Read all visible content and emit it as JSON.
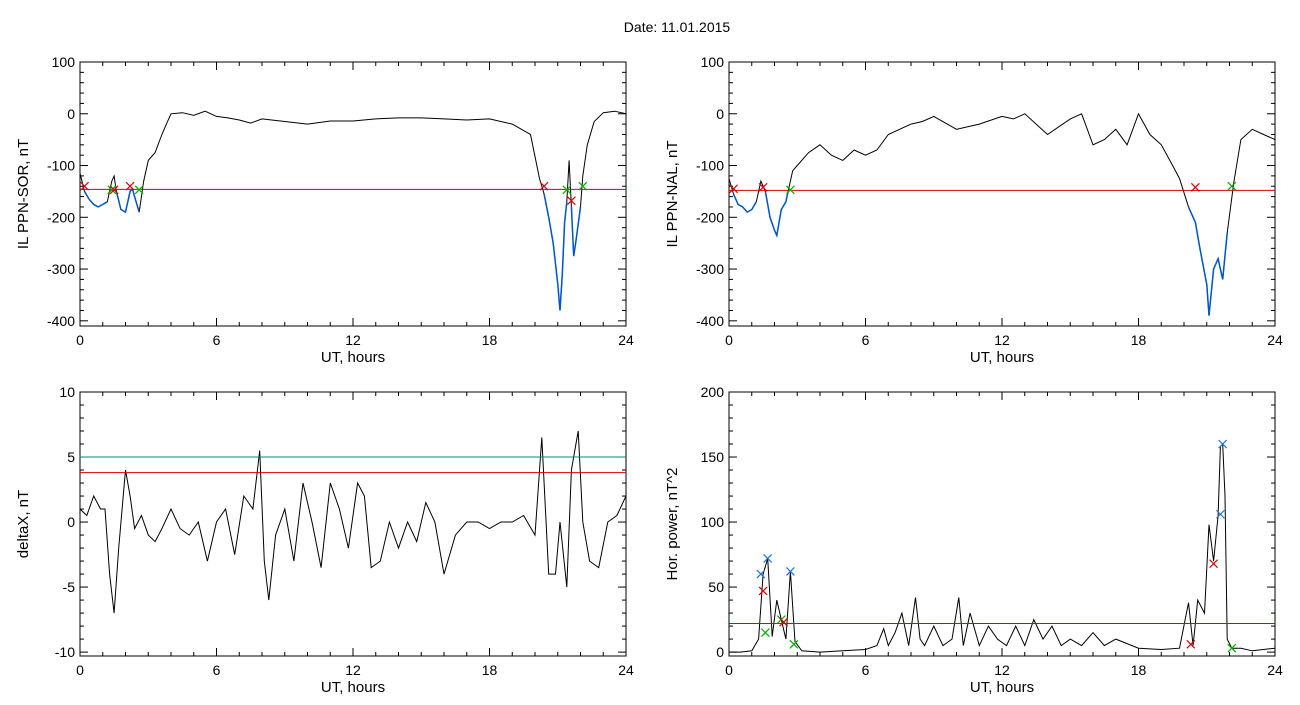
{
  "page": {
    "date_label": "Date:  11.01.2015"
  },
  "colors": {
    "trace": "#000000",
    "highlight": "#0055cc",
    "threshold": "#dd0000",
    "threshold2": "#008b8b",
    "marker_red": "#dd0000",
    "marker_green": "#00aa00",
    "marker_blue": "#1e73d6"
  },
  "chart_data": [
    {
      "id": "sor",
      "type": "line",
      "xlabel": "UT, hours",
      "ylabel": "IL PPN-SOR, nT",
      "xlim": [
        0,
        24
      ],
      "ylim": [
        -410,
        100
      ],
      "xticks": [
        0,
        6,
        12,
        18,
        24
      ],
      "yticks": [
        100,
        0,
        -100,
        -200,
        -300,
        -400
      ],
      "grid": false,
      "x": [
        0,
        0.2,
        0.4,
        0.6,
        0.8,
        1.0,
        1.2,
        1.4,
        1.5,
        1.6,
        1.8,
        2.0,
        2.2,
        2.3,
        2.5,
        2.6,
        2.8,
        3.0,
        3.3,
        3.6,
        3.8,
        4.0,
        4.5,
        5.0,
        5.5,
        6.0,
        6.5,
        7.0,
        7.5,
        8.0,
        9,
        10,
        11,
        12,
        13,
        14,
        15,
        16,
        17,
        18,
        19,
        19.8,
        20.2,
        20.4,
        20.6,
        20.8,
        21.0,
        21.1,
        21.2,
        21.3,
        21.4,
        21.5,
        21.6,
        21.7,
        21.8,
        22.0,
        22.1,
        22.3,
        22.6,
        23.0,
        23.5,
        24
      ],
      "y": [
        -115,
        -150,
        -165,
        -175,
        -180,
        -175,
        -170,
        -130,
        -120,
        -150,
        -185,
        -190,
        -150,
        -145,
        -175,
        -190,
        -130,
        -90,
        -75,
        -40,
        -20,
        0,
        2,
        -3,
        5,
        -5,
        -8,
        -12,
        -18,
        -10,
        -15,
        -20,
        -14,
        -14,
        -10,
        -8,
        -8,
        -10,
        -12,
        -10,
        -20,
        -40,
        -125,
        -155,
        -200,
        -250,
        -330,
        -380,
        -310,
        -210,
        -170,
        -90,
        -180,
        -275,
        -245,
        -180,
        -120,
        -60,
        -15,
        2,
        5,
        0
      ],
      "threshold": -146,
      "markers": [
        {
          "x": 0.2,
          "y": -140,
          "color": "red"
        },
        {
          "x": 1.4,
          "y": -147,
          "color": "green"
        },
        {
          "x": 1.5,
          "y": -147,
          "color": "red"
        },
        {
          "x": 2.2,
          "y": -140,
          "color": "red"
        },
        {
          "x": 2.6,
          "y": -147,
          "color": "green"
        },
        {
          "x": 20.4,
          "y": -140,
          "color": "red"
        },
        {
          "x": 21.4,
          "y": -147,
          "color": "green"
        },
        {
          "x": 21.6,
          "y": -168,
          "color": "red"
        },
        {
          "x": 22.1,
          "y": -140,
          "color": "green"
        }
      ]
    },
    {
      "id": "nal",
      "type": "line",
      "xlabel": "UT, hours",
      "ylabel": "IL PPN-NAL, nT",
      "xlim": [
        0,
        24
      ],
      "ylim": [
        -410,
        100
      ],
      "xticks": [
        0,
        6,
        12,
        18,
        24
      ],
      "yticks": [
        100,
        0,
        -100,
        -200,
        -300,
        -400
      ],
      "grid": false,
      "x": [
        0,
        0.2,
        0.4,
        0.6,
        0.8,
        1.0,
        1.2,
        1.4,
        1.6,
        1.8,
        2.0,
        2.1,
        2.3,
        2.5,
        2.6,
        2.8,
        3.0,
        3.5,
        4.0,
        4.5,
        5.0,
        5.5,
        6.0,
        6.5,
        7.0,
        7.5,
        8.0,
        8.5,
        9,
        10,
        11,
        12,
        12.5,
        13,
        14,
        15,
        15.5,
        16,
        16.5,
        17,
        17.5,
        18,
        18.5,
        19,
        19.5,
        19.8,
        20.2,
        20.5,
        20.7,
        21.0,
        21.1,
        21.3,
        21.5,
        21.7,
        21.9,
        22.2,
        22.5,
        23.0,
        23.5,
        24
      ],
      "y": [
        -125,
        -155,
        -175,
        -180,
        -190,
        -185,
        -170,
        -130,
        -150,
        -200,
        -225,
        -235,
        -185,
        -170,
        -150,
        -110,
        -100,
        -75,
        -60,
        -80,
        -90,
        -70,
        -80,
        -70,
        -40,
        -30,
        -20,
        -15,
        -5,
        -30,
        -20,
        -5,
        -10,
        0,
        -40,
        -10,
        0,
        -60,
        -50,
        -30,
        -60,
        0,
        -40,
        -60,
        -100,
        -125,
        -180,
        -210,
        -260,
        -330,
        -390,
        -300,
        -280,
        -320,
        -230,
        -130,
        -50,
        -30,
        -40,
        -50
      ],
      "threshold": -148,
      "markers": [
        {
          "x": 0.2,
          "y": -145,
          "color": "red"
        },
        {
          "x": 1.5,
          "y": -142,
          "color": "red"
        },
        {
          "x": 2.7,
          "y": -147,
          "color": "green"
        },
        {
          "x": 20.5,
          "y": -142,
          "color": "red"
        },
        {
          "x": 22.1,
          "y": -140,
          "color": "green"
        }
      ]
    },
    {
      "id": "deltax",
      "type": "line",
      "xlabel": "UT, hours",
      "ylabel": "deltaX, nT",
      "xlim": [
        0,
        24
      ],
      "ylim": [
        -10.3,
        10
      ],
      "xticks": [
        0,
        6,
        12,
        18,
        24
      ],
      "yticks": [
        10,
        5,
        0,
        -5,
        -10
      ],
      "grid": false,
      "x": [
        0,
        0.3,
        0.6,
        0.9,
        1.1,
        1.3,
        1.5,
        1.7,
        2.0,
        2.2,
        2.4,
        2.7,
        3.0,
        3.3,
        3.6,
        4.0,
        4.4,
        4.8,
        5.2,
        5.6,
        6.0,
        6.4,
        6.8,
        7.2,
        7.6,
        7.9,
        8.1,
        8.3,
        8.6,
        9.0,
        9.4,
        9.8,
        10.2,
        10.6,
        11.0,
        11.4,
        11.8,
        12.2,
        12.5,
        12.8,
        13.2,
        13.6,
        14.0,
        14.4,
        14.8,
        15.2,
        15.6,
        16.0,
        16.5,
        17.0,
        17.5,
        18.0,
        18.5,
        19.0,
        19.5,
        20.0,
        20.3,
        20.6,
        20.9,
        21.1,
        21.4,
        21.6,
        21.9,
        22.1,
        22.4,
        22.8,
        23.2,
        23.6,
        24
      ],
      "y": [
        1,
        0.5,
        2,
        1,
        1,
        -4,
        -7,
        -2,
        4,
        2,
        -0.5,
        0.5,
        -1,
        -1.5,
        -0.5,
        1,
        -0.5,
        -1,
        0,
        -3,
        0,
        1,
        -2.5,
        2,
        1,
        5.5,
        -3,
        -6,
        -1,
        1,
        -3,
        3,
        0,
        -3.5,
        3,
        1,
        -2,
        3,
        2,
        -3.5,
        -3,
        0,
        -2,
        0,
        -1.5,
        1.5,
        0,
        -4,
        -1,
        0,
        0,
        -0.5,
        0,
        0,
        0.5,
        -1,
        6.5,
        -4,
        -4,
        0,
        -5,
        4,
        7,
        0,
        -3,
        -3.5,
        0,
        0.5,
        2
      ],
      "thresholds": [
        5,
        3.8
      ]
    },
    {
      "id": "power",
      "type": "line",
      "xlabel": "UT, hours",
      "ylabel": "Hor. power, nT^2",
      "xlim": [
        0,
        24
      ],
      "ylim": [
        -3,
        200
      ],
      "xticks": [
        0,
        6,
        12,
        18,
        24
      ],
      "yticks": [
        200,
        150,
        100,
        50,
        0
      ],
      "grid": false,
      "x": [
        0,
        0.5,
        1.0,
        1.3,
        1.5,
        1.7,
        1.9,
        2.1,
        2.3,
        2.5,
        2.7,
        2.9,
        3.2,
        4.0,
        5.0,
        6.0,
        6.5,
        6.8,
        7.0,
        7.3,
        7.6,
        7.9,
        8.2,
        8.4,
        8.6,
        9.0,
        9.4,
        9.8,
        10.1,
        10.3,
        10.6,
        11.0,
        11.4,
        11.8,
        12.2,
        12.6,
        13.0,
        13.4,
        13.8,
        14.2,
        14.6,
        15.0,
        15.5,
        16.0,
        16.5,
        17.0,
        18.0,
        19.0,
        19.8,
        20.2,
        20.4,
        20.6,
        20.9,
        21.1,
        21.3,
        21.5,
        21.6,
        21.7,
        21.8,
        21.9,
        22.1,
        22.5,
        23.0,
        24
      ],
      "y": [
        0,
        0,
        1,
        10,
        60,
        72,
        12,
        40,
        25,
        10,
        62,
        8,
        1,
        0,
        1,
        2,
        5,
        18,
        5,
        15,
        30,
        5,
        42,
        10,
        5,
        20,
        5,
        10,
        42,
        5,
        30,
        5,
        20,
        10,
        5,
        20,
        5,
        25,
        10,
        20,
        5,
        10,
        5,
        15,
        5,
        10,
        3,
        2,
        3,
        38,
        5,
        40,
        30,
        98,
        70,
        105,
        158,
        160,
        120,
        10,
        3,
        3,
        1,
        3
      ],
      "threshold": 22,
      "markers": [
        {
          "x": 1.5,
          "y": 47,
          "color": "red"
        },
        {
          "x": 1.4,
          "y": 60,
          "color": "blue"
        },
        {
          "x": 1.7,
          "y": 72,
          "color": "blue"
        },
        {
          "x": 1.6,
          "y": 15,
          "color": "green"
        },
        {
          "x": 2.3,
          "y": 25,
          "color": "green"
        },
        {
          "x": 2.4,
          "y": 23,
          "color": "red"
        },
        {
          "x": 2.7,
          "y": 62,
          "color": "blue"
        },
        {
          "x": 2.85,
          "y": 6,
          "color": "green"
        },
        {
          "x": 20.3,
          "y": 6,
          "color": "red"
        },
        {
          "x": 21.3,
          "y": 68,
          "color": "red"
        },
        {
          "x": 21.6,
          "y": 106,
          "color": "blue"
        },
        {
          "x": 21.7,
          "y": 160,
          "color": "blue"
        },
        {
          "x": 22.1,
          "y": 3,
          "color": "green"
        }
      ]
    }
  ]
}
